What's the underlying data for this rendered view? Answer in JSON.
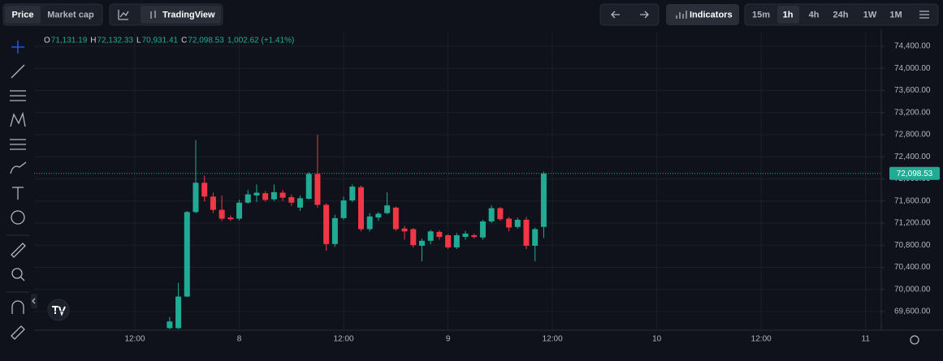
{
  "toolbar": {
    "price": "Price",
    "market_cap": "Market cap",
    "tradingview": "TradingView",
    "indicators": "Indicators",
    "timeframes": [
      "15m",
      "1h",
      "4h",
      "24h",
      "1W",
      "1M"
    ]
  },
  "chart_data": {
    "type": "candlestick",
    "ohlc_header": [
      {
        "key": "O",
        "value": "71,131.19"
      },
      {
        "key": "H",
        "value": "72,132.33"
      },
      {
        "key": "L",
        "value": "70,931.41"
      },
      {
        "key": "C",
        "value": "72,098.53"
      }
    ],
    "change": "1,002.62 (+1.41%)",
    "x": [
      16,
      17,
      18,
      19,
      20,
      21,
      22,
      23,
      24,
      25,
      26,
      27,
      28,
      29,
      30,
      31,
      32,
      33,
      34,
      35,
      36,
      37,
      38,
      39,
      40,
      41,
      42,
      43,
      44,
      45,
      46,
      47,
      48,
      49,
      50,
      51,
      52,
      53,
      54,
      55,
      56,
      57,
      58,
      59
    ],
    "open": [
      69300,
      69300,
      69870,
      71400,
      71930,
      71680,
      71440,
      71300,
      71280,
      71570,
      71700,
      71740,
      71630,
      71750,
      71670,
      71480,
      71640,
      72090,
      71530,
      70820,
      71290,
      71610,
      71850,
      71090,
      71300,
      71380,
      71480,
      71100,
      71090,
      70790,
      70880,
      71040,
      70980,
      70760,
      70950,
      70980,
      70940,
      71230,
      71470,
      71280,
      71130,
      71260,
      70790,
      71131.19
    ],
    "high": [
      69500,
      70120,
      71420,
      72700,
      72060,
      71750,
      71700,
      71340,
      71620,
      71800,
      71900,
      71780,
      71900,
      71800,
      71720,
      71700,
      72120,
      72800,
      71560,
      71350,
      71680,
      71900,
      71880,
      71380,
      71400,
      71760,
      71500,
      71150,
      71110,
      70920,
      71080,
      71070,
      71000,
      71020,
      71060,
      71010,
      71260,
      71520,
      71490,
      71310,
      71300,
      71310,
      71120,
      72132.33
    ],
    "low": [
      69280,
      69280,
      69860,
      71380,
      71590,
      71380,
      71240,
      71240,
      71250,
      71550,
      71580,
      71590,
      71600,
      71600,
      71510,
      71420,
      71630,
      71480,
      70700,
      70770,
      71260,
      71580,
      71050,
      71050,
      71240,
      71360,
      71060,
      70900,
      70760,
      70510,
      70820,
      70900,
      70730,
      70730,
      70900,
      70920,
      70900,
      71200,
      71240,
      71050,
      71100,
      70730,
      70510,
      70931.41
    ],
    "close": [
      69420,
      69870,
      71400,
      71930,
      71680,
      71440,
      71280,
      71270,
      71570,
      71720,
      71750,
      71620,
      71760,
      71660,
      71570,
      71650,
      72090,
      71530,
      70820,
      71290,
      71610,
      71860,
      71090,
      71320,
      71370,
      71520,
      71090,
      71050,
      70800,
      70880,
      71050,
      70950,
      70760,
      70980,
      71010,
      70950,
      71230,
      71470,
      71270,
      71120,
      71260,
      70790,
      71090,
      72098.53
    ],
    "up_color": "#22ab94",
    "down_color": "#f23645",
    "last_price": {
      "value": 72098.53,
      "label": "72,098.53"
    },
    "xlim": [
      0.42,
      97.8
    ],
    "xticks": [
      {
        "value": 12,
        "label": "12:00"
      },
      {
        "value": 24,
        "label": "8"
      },
      {
        "value": 36,
        "label": "12:00"
      },
      {
        "value": 48,
        "label": "9"
      },
      {
        "value": 60,
        "label": "12:00"
      },
      {
        "value": 72,
        "label": "10"
      },
      {
        "value": 84,
        "label": "12:00"
      },
      {
        "value": 96,
        "label": "11"
      }
    ],
    "ylim": [
      69262,
      74650
    ],
    "yticks": [
      {
        "value": 69600,
        "label": "69,600.00"
      },
      {
        "value": 70000,
        "label": "70,000.00"
      },
      {
        "value": 70400,
        "label": "70,400.00"
      },
      {
        "value": 70800,
        "label": "70,800.00"
      },
      {
        "value": 71200,
        "label": "71,200.00"
      },
      {
        "value": 71600,
        "label": "71,600.00"
      },
      {
        "value": 72000,
        "label": "72,000.00"
      },
      {
        "value": 72400,
        "label": "72,400.00"
      },
      {
        "value": 72800,
        "label": "72,800.00"
      },
      {
        "value": 73200,
        "label": "73,200.00"
      },
      {
        "value": 73600,
        "label": "73,600.00"
      },
      {
        "value": 74000,
        "label": "74,000.00"
      },
      {
        "value": 74400,
        "label": "74,400.00"
      }
    ],
    "grid": true
  }
}
